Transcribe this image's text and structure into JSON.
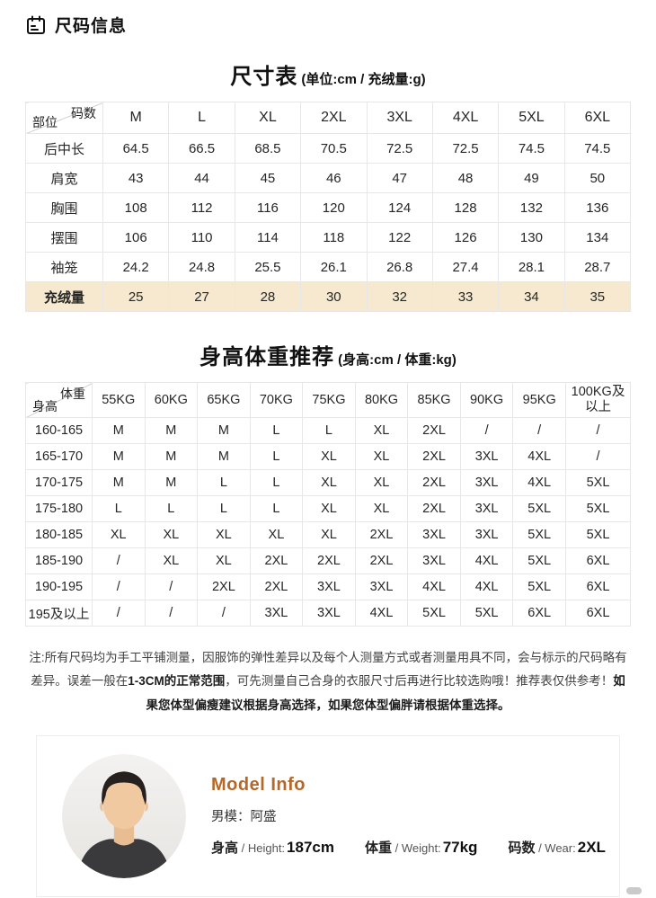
{
  "header": {
    "title": "尺码信息"
  },
  "colors": {
    "accent": "#b4682a",
    "table_highlight": "#f6e9cf"
  },
  "size_table": {
    "title": "尺寸表",
    "subtitle": "(单位:cm / 充绒量:g)",
    "corner": {
      "top": "码数",
      "bottom": "部位"
    },
    "columns": [
      "M",
      "L",
      "XL",
      "2XL",
      "3XL",
      "4XL",
      "5XL",
      "6XL"
    ],
    "rows": [
      {
        "label": "后中长",
        "values": [
          "64.5",
          "66.5",
          "68.5",
          "70.5",
          "72.5",
          "72.5",
          "74.5",
          "74.5"
        ]
      },
      {
        "label": "肩宽",
        "values": [
          "43",
          "44",
          "45",
          "46",
          "47",
          "48",
          "49",
          "50"
        ]
      },
      {
        "label": "胸围",
        "values": [
          "108",
          "112",
          "116",
          "120",
          "124",
          "128",
          "132",
          "136"
        ]
      },
      {
        "label": "摆围",
        "values": [
          "106",
          "110",
          "114",
          "118",
          "122",
          "126",
          "130",
          "134"
        ]
      },
      {
        "label": "袖笼",
        "values": [
          "24.2",
          "24.8",
          "25.5",
          "26.1",
          "26.8",
          "27.4",
          "28.1",
          "28.7"
        ]
      },
      {
        "label": "充绒量",
        "values": [
          "25",
          "27",
          "28",
          "30",
          "32",
          "33",
          "34",
          "35"
        ],
        "highlight": true
      }
    ]
  },
  "reco_table": {
    "title": "身高体重推荐",
    "subtitle": "(身高:cm / 体重:kg)",
    "corner": {
      "top": "体重",
      "bottom": "身高"
    },
    "columns": [
      "55KG",
      "60KG",
      "65KG",
      "70KG",
      "75KG",
      "80KG",
      "85KG",
      "90KG",
      "95KG",
      "100KG及以上"
    ],
    "rows": [
      {
        "label": "160-165",
        "values": [
          "M",
          "M",
          "M",
          "L",
          "L",
          "XL",
          "2XL",
          "/",
          "/",
          "/"
        ]
      },
      {
        "label": "165-170",
        "values": [
          "M",
          "M",
          "M",
          "L",
          "XL",
          "XL",
          "2XL",
          "3XL",
          "4XL",
          "/"
        ]
      },
      {
        "label": "170-175",
        "values": [
          "M",
          "M",
          "L",
          "L",
          "XL",
          "XL",
          "2XL",
          "3XL",
          "4XL",
          "5XL"
        ]
      },
      {
        "label": "175-180",
        "values": [
          "L",
          "L",
          "L",
          "L",
          "XL",
          "XL",
          "2XL",
          "3XL",
          "5XL",
          "5XL"
        ]
      },
      {
        "label": "180-185",
        "values": [
          "XL",
          "XL",
          "XL",
          "XL",
          "XL",
          "2XL",
          "3XL",
          "3XL",
          "5XL",
          "5XL"
        ]
      },
      {
        "label": "185-190",
        "values": [
          "/",
          "XL",
          "XL",
          "2XL",
          "2XL",
          "2XL",
          "3XL",
          "4XL",
          "5XL",
          "6XL"
        ]
      },
      {
        "label": "190-195",
        "values": [
          "/",
          "/",
          "2XL",
          "2XL",
          "3XL",
          "3XL",
          "4XL",
          "4XL",
          "5XL",
          "6XL"
        ]
      },
      {
        "label": "195及以上",
        "values": [
          "/",
          "/",
          "/",
          "3XL",
          "3XL",
          "4XL",
          "5XL",
          "5XL",
          "6XL",
          "6XL"
        ]
      }
    ]
  },
  "note": {
    "segments": [
      {
        "text": "注:所有尺码均为手工平铺测量，因服饰的弹性差异以及每个人测量方式或者测量用具不同，会与标示的尺码略有差异。误差一般在",
        "bold": false
      },
      {
        "text": "1-3CM的正常范围",
        "bold": true
      },
      {
        "text": "，可先测量自己合身的衣服尺寸后再进行比较选购哦！推荐表仅供参考！",
        "bold": false
      },
      {
        "text": "如果您体型偏瘦建议根据身高选择，如果您体型偏胖请根据体重选择。",
        "bold": true
      }
    ]
  },
  "model_info": {
    "title": "Model Info",
    "model": "男模：阿盛",
    "stats": [
      {
        "zh": "身高",
        "en": "Height",
        "value": "187cm"
      },
      {
        "zh": "体重",
        "en": "Weight",
        "value": "77kg"
      },
      {
        "zh": "码数",
        "en": "Wear",
        "value": "2XL"
      }
    ]
  }
}
